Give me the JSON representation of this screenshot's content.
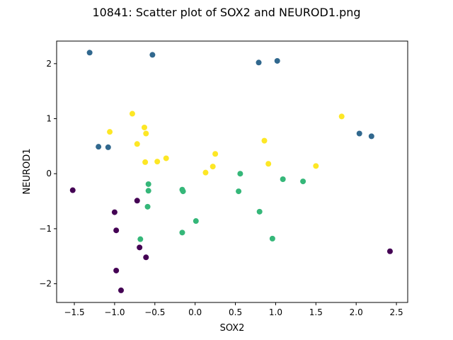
{
  "chart_data": {
    "type": "scatter",
    "title": "10841: Scatter plot of SOX2 and NEUROD1.png",
    "xlabel": "SOX2",
    "ylabel": "NEUROD1",
    "xlim": [
      -1.72,
      2.64
    ],
    "ylim": [
      -2.34,
      2.41
    ],
    "xticks": [
      -1.5,
      -1.0,
      -0.5,
      0.0,
      0.5,
      1.0,
      1.5,
      2.0,
      2.5
    ],
    "xtick_labels": [
      "−1.5",
      "−1.0",
      "−0.5",
      "0.0",
      "0.5",
      "1.0",
      "1.5",
      "2.0",
      "2.5"
    ],
    "yticks": [
      -2,
      -1,
      0,
      1,
      2
    ],
    "ytick_labels": [
      "−2",
      "−1",
      "0",
      "1",
      "2"
    ],
    "grid": false,
    "legend": "none",
    "series": [
      {
        "color": "#440154",
        "points": [
          [
            -1.52,
            -0.3
          ],
          [
            -1.0,
            -0.7
          ],
          [
            -0.98,
            -1.03
          ],
          [
            -0.98,
            -1.76
          ],
          [
            -0.92,
            -2.12
          ],
          [
            -0.72,
            -0.49
          ],
          [
            -0.69,
            -1.34
          ],
          [
            -0.61,
            -1.52
          ],
          [
            2.42,
            -1.41
          ]
        ]
      },
      {
        "color": "#31688e",
        "points": [
          [
            -1.31,
            2.2
          ],
          [
            -0.53,
            2.16
          ],
          [
            0.79,
            2.02
          ],
          [
            1.02,
            2.05
          ],
          [
            -1.2,
            0.49
          ],
          [
            -1.08,
            0.48
          ],
          [
            2.04,
            0.73
          ],
          [
            2.19,
            0.68
          ]
        ]
      },
      {
        "color": "#35b779",
        "points": [
          [
            -0.58,
            -0.19
          ],
          [
            -0.58,
            -0.31
          ],
          [
            -0.59,
            -0.6
          ],
          [
            -0.68,
            -1.19
          ],
          [
            -0.16,
            -0.29
          ],
          [
            -0.15,
            -0.32
          ],
          [
            -0.16,
            -1.07
          ],
          [
            0.01,
            -0.86
          ],
          [
            0.54,
            -0.32
          ],
          [
            0.56,
            0.0
          ],
          [
            0.8,
            -0.69
          ],
          [
            0.96,
            -1.18
          ],
          [
            1.09,
            -0.1
          ],
          [
            1.34,
            -0.14
          ]
        ]
      },
      {
        "color": "#fde725",
        "points": [
          [
            -1.06,
            0.76
          ],
          [
            -0.78,
            1.09
          ],
          [
            -0.72,
            0.54
          ],
          [
            -0.63,
            0.84
          ],
          [
            -0.61,
            0.73
          ],
          [
            -0.62,
            0.21
          ],
          [
            -0.47,
            0.22
          ],
          [
            -0.36,
            0.28
          ],
          [
            0.13,
            0.02
          ],
          [
            0.22,
            0.13
          ],
          [
            0.25,
            0.36
          ],
          [
            0.86,
            0.6
          ],
          [
            0.91,
            0.18
          ],
          [
            1.5,
            0.14
          ],
          [
            1.82,
            1.04
          ]
        ]
      }
    ]
  }
}
